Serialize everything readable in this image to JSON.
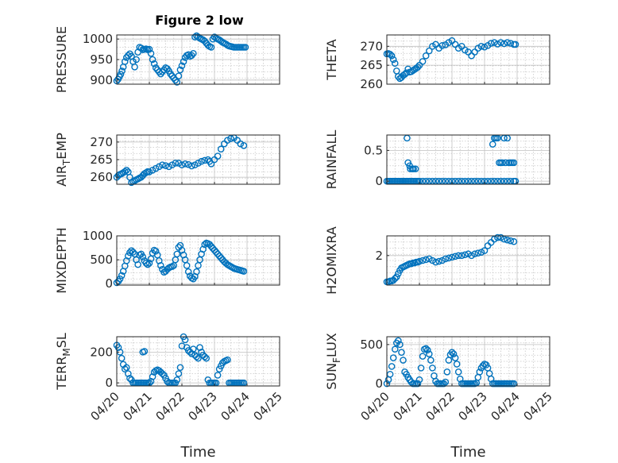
{
  "figure": {
    "title": "Figure 2 low"
  },
  "style": {
    "marker_color": "#0072BD"
  },
  "chart_data": [
    {
      "type": "scatter",
      "ylabel": "PRESSURE",
      "xlim": [
        "2023-04-20",
        "2023-04-25"
      ],
      "ylim": [
        890,
        1010
      ],
      "yticks": [
        900,
        950,
        1000
      ],
      "xticks_shown": false,
      "x_days": [
        0.0,
        0.04,
        0.08,
        0.12,
        0.16,
        0.2,
        0.25,
        0.3,
        0.35,
        0.4,
        0.45,
        0.5,
        0.55,
        0.6,
        0.65,
        0.7,
        0.75,
        0.8,
        0.85,
        0.9,
        0.95,
        1.0,
        1.05,
        1.1,
        1.15,
        1.2,
        1.25,
        1.3,
        1.35,
        1.4,
        1.45,
        1.5,
        1.55,
        1.6,
        1.65,
        1.7,
        1.75,
        1.8,
        1.85,
        1.9,
        1.95,
        2.0,
        2.05,
        2.1,
        2.15,
        2.2,
        2.25,
        2.3,
        2.35,
        2.4,
        2.45,
        2.5,
        2.55,
        2.6,
        2.65,
        2.7,
        2.75,
        2.8,
        2.85,
        2.9,
        2.95,
        3.0,
        3.05,
        3.1,
        3.15,
        3.2,
        3.25,
        3.3,
        3.35,
        3.4,
        3.45,
        3.5,
        3.55,
        3.6,
        3.65,
        3.7,
        3.75,
        3.8,
        3.85,
        3.9,
        3.95
      ],
      "y": [
        898,
        902,
        908,
        914,
        922,
        932,
        945,
        955,
        960,
        964,
        958,
        945,
        932,
        950,
        968,
        980,
        978,
        974,
        975,
        976,
        974,
        975,
        965,
        950,
        940,
        930,
        925,
        920,
        915,
        920,
        925,
        930,
        928,
        922,
        915,
        910,
        905,
        900,
        895,
        910,
        925,
        935,
        945,
        955,
        960,
        962,
        958,
        960,
        965,
        1005,
        1008,
        1005,
        1002,
        1000,
        998,
        995,
        990,
        985,
        982,
        980,
        1000,
        1005,
        1002,
        1000,
        998,
        995,
        992,
        990,
        988,
        985,
        983,
        982,
        981,
        980,
        980,
        980,
        980,
        980,
        980,
        980,
        980
      ],
      "data_note": "values estimated from the scatter"
    },
    {
      "type": "scatter",
      "ylabel": "THETA",
      "xlim": [
        "2023-04-20",
        "2023-04-25"
      ],
      "ylim": [
        260,
        273
      ],
      "yticks": [
        260,
        265,
        270
      ],
      "xticks_shown": false,
      "x_days": [
        0.0,
        0.05,
        0.1,
        0.15,
        0.2,
        0.25,
        0.3,
        0.35,
        0.4,
        0.45,
        0.5,
        0.55,
        0.6,
        0.65,
        0.7,
        0.75,
        0.8,
        0.85,
        0.9,
        0.95,
        1.0,
        1.1,
        1.2,
        1.3,
        1.4,
        1.5,
        1.6,
        1.7,
        1.8,
        1.9,
        2.0,
        2.1,
        2.2,
        2.3,
        2.4,
        2.5,
        2.6,
        2.7,
        2.8,
        2.9,
        3.0,
        3.1,
        3.2,
        3.3,
        3.4,
        3.5,
        3.6,
        3.7,
        3.8,
        3.9,
        3.95
      ],
      "y": [
        268.0,
        268.1,
        267.9,
        267.5,
        266.5,
        265.5,
        263.5,
        262.0,
        261.5,
        261.8,
        262.3,
        262.6,
        263.0,
        264.0,
        263.2,
        263.3,
        263.6,
        263.9,
        264.2,
        264.5,
        265.0,
        266.0,
        267.5,
        268.8,
        270.0,
        270.5,
        269.5,
        270.2,
        270.4,
        271.0,
        271.5,
        270.5,
        269.5,
        270.0,
        269.0,
        268.5,
        267.5,
        268.5,
        269.5,
        270.0,
        269.8,
        270.2,
        270.8,
        271.0,
        270.6,
        271.0,
        270.7,
        271.0,
        270.8,
        270.5,
        270.5
      ],
      "data_note": "values estimated from the scatter"
    },
    {
      "type": "scatter",
      "ylabel": "AIR_TEMP",
      "xlim": [
        "2023-04-20",
        "2023-04-25"
      ],
      "ylim": [
        258,
        272
      ],
      "yticks": [
        260,
        265,
        270
      ],
      "xticks_shown": false,
      "x_days": [
        0.0,
        0.05,
        0.1,
        0.15,
        0.2,
        0.25,
        0.3,
        0.35,
        0.4,
        0.45,
        0.5,
        0.55,
        0.6,
        0.65,
        0.7,
        0.75,
        0.8,
        0.85,
        0.9,
        0.95,
        1.0,
        1.1,
        1.2,
        1.3,
        1.4,
        1.5,
        1.6,
        1.7,
        1.8,
        1.9,
        2.0,
        2.1,
        2.2,
        2.3,
        2.4,
        2.5,
        2.6,
        2.7,
        2.8,
        2.85,
        2.9,
        3.0,
        3.1,
        3.2,
        3.3,
        3.4,
        3.5,
        3.6,
        3.7,
        3.8,
        3.9
      ],
      "y": [
        260.0,
        260.5,
        260.8,
        261.0,
        261.3,
        261.6,
        262.0,
        261.5,
        260.0,
        258.5,
        258.8,
        259.0,
        259.3,
        259.5,
        259.8,
        260.0,
        260.5,
        261.0,
        261.3,
        261.6,
        261.5,
        262.0,
        262.5,
        263.0,
        263.5,
        263.3,
        263.0,
        263.5,
        264.0,
        264.0,
        263.5,
        263.8,
        263.6,
        263.2,
        263.5,
        264.0,
        264.5,
        264.8,
        265.0,
        264.5,
        263.8,
        265.0,
        266.0,
        268.0,
        269.5,
        270.5,
        271.0,
        271.2,
        270.5,
        269.5,
        269.0
      ],
      "data_note": "values estimated from the scatter"
    },
    {
      "type": "scatter",
      "ylabel": "RAINFALL",
      "xlim": [
        "2023-04-20",
        "2023-04-25"
      ],
      "ylim": [
        -0.05,
        0.75
      ],
      "yticks": [
        0,
        0.5
      ],
      "xticks_shown": false,
      "x_days": [
        0.0,
        0.05,
        0.1,
        0.15,
        0.2,
        0.25,
        0.3,
        0.35,
        0.4,
        0.45,
        0.5,
        0.55,
        0.6,
        0.65,
        0.7,
        0.75,
        0.8,
        0.85,
        0.9,
        0.95,
        1.0,
        1.1,
        1.2,
        1.3,
        1.4,
        1.5,
        1.6,
        1.7,
        1.8,
        1.9,
        2.0,
        2.1,
        2.2,
        2.3,
        2.4,
        2.5,
        2.6,
        2.7,
        2.8,
        2.9,
        3.0,
        3.1,
        3.2,
        3.3,
        3.4,
        3.5,
        3.6,
        3.7,
        3.8,
        3.9,
        3.95,
        0.62,
        0.65,
        0.7,
        0.72,
        0.78,
        0.82,
        0.88,
        3.25,
        3.3,
        3.35,
        3.4,
        3.45,
        3.5,
        3.55,
        3.6,
        3.65,
        3.7,
        3.75,
        3.8,
        3.85,
        3.9
      ],
      "y": [
        0,
        0,
        0,
        0,
        0,
        0,
        0,
        0,
        0,
        0,
        0,
        0,
        0,
        0,
        0,
        0,
        0,
        0,
        0,
        0,
        0,
        0,
        0,
        0,
        0,
        0,
        0,
        0,
        0,
        0,
        0,
        0,
        0,
        0,
        0,
        0,
        0,
        0,
        0,
        0,
        0,
        0,
        0,
        0,
        0,
        0,
        0,
        0,
        0,
        0,
        0,
        0.7,
        0.3,
        0.25,
        0.2,
        0.2,
        0.2,
        0.2,
        0.6,
        0.7,
        0.7,
        0.7,
        0.3,
        0.3,
        0.3,
        0.7,
        0.3,
        0.7,
        0.3,
        0.3,
        0.3,
        0.3
      ],
      "data_note": "values estimated from the scatter"
    },
    {
      "type": "scatter",
      "ylabel": "MIXDEPTH",
      "xlim": [
        "2023-04-20",
        "2023-04-25"
      ],
      "ylim": [
        -30,
        1000
      ],
      "yticks": [
        0,
        500,
        1000
      ],
      "xticks_shown": false,
      "x_days": [
        0.0,
        0.05,
        0.1,
        0.15,
        0.2,
        0.25,
        0.3,
        0.35,
        0.4,
        0.45,
        0.5,
        0.55,
        0.6,
        0.65,
        0.7,
        0.75,
        0.8,
        0.85,
        0.9,
        0.95,
        1.0,
        1.05,
        1.1,
        1.15,
        1.2,
        1.25,
        1.3,
        1.35,
        1.4,
        1.45,
        1.5,
        1.55,
        1.6,
        1.65,
        1.7,
        1.75,
        1.8,
        1.85,
        1.9,
        1.95,
        2.0,
        2.05,
        2.1,
        2.15,
        2.2,
        2.25,
        2.3,
        2.35,
        2.4,
        2.45,
        2.5,
        2.55,
        2.6,
        2.65,
        2.7,
        2.75,
        2.8,
        2.85,
        2.9,
        2.95,
        3.0,
        3.05,
        3.1,
        3.15,
        3.2,
        3.25,
        3.3,
        3.35,
        3.4,
        3.45,
        3.5,
        3.55,
        3.6,
        3.65,
        3.7,
        3.75,
        3.8,
        3.85,
        3.9
      ],
      "y": [
        20,
        50,
        100,
        170,
        260,
        370,
        480,
        580,
        650,
        690,
        660,
        620,
        500,
        400,
        600,
        620,
        560,
        480,
        430,
        400,
        430,
        520,
        640,
        700,
        680,
        600,
        480,
        380,
        300,
        240,
        260,
        300,
        330,
        350,
        360,
        380,
        500,
        620,
        760,
        800,
        700,
        600,
        500,
        380,
        250,
        160,
        120,
        100,
        150,
        250,
        380,
        500,
        620,
        720,
        820,
        850,
        840,
        820,
        780,
        740,
        700,
        660,
        620,
        580,
        540,
        500,
        460,
        430,
        400,
        380,
        360,
        340,
        320,
        310,
        300,
        290,
        280,
        270,
        260
      ],
      "data_note": "values estimated from the scatter"
    },
    {
      "type": "scatter",
      "ylabel": "H2OMIXRA",
      "xlim": [
        "2023-04-20",
        "2023-04-25"
      ],
      "ylim": [
        0.2,
        3.2
      ],
      "yticks": [
        2
      ],
      "xticks_shown": false,
      "x_days": [
        0.0,
        0.05,
        0.1,
        0.15,
        0.2,
        0.25,
        0.3,
        0.35,
        0.4,
        0.45,
        0.5,
        0.55,
        0.6,
        0.65,
        0.7,
        0.75,
        0.8,
        0.85,
        0.9,
        0.95,
        1.0,
        1.1,
        1.2,
        1.3,
        1.4,
        1.5,
        1.6,
        1.7,
        1.8,
        1.9,
        2.0,
        2.1,
        2.2,
        2.3,
        2.4,
        2.5,
        2.6,
        2.7,
        2.8,
        2.9,
        3.0,
        3.1,
        3.2,
        3.3,
        3.4,
        3.5,
        3.6,
        3.7,
        3.8,
        3.9
      ],
      "y": [
        0.4,
        0.4,
        0.45,
        0.45,
        0.5,
        0.6,
        0.7,
        0.9,
        1.1,
        1.25,
        1.3,
        1.35,
        1.4,
        1.45,
        1.5,
        1.5,
        1.55,
        1.55,
        1.6,
        1.6,
        1.65,
        1.7,
        1.75,
        1.8,
        1.7,
        1.6,
        1.65,
        1.7,
        1.8,
        1.85,
        1.9,
        1.95,
        2.0,
        2.0,
        2.05,
        2.1,
        2.0,
        2.1,
        2.15,
        2.2,
        2.3,
        2.6,
        2.8,
        3.0,
        3.1,
        3.1,
        3.0,
        2.95,
        2.9,
        2.85
      ],
      "data_note": "values estimated from the scatter"
    },
    {
      "type": "scatter",
      "ylabel": "TERR_MSL",
      "xlim": [
        "2023-04-20",
        "2023-04-25"
      ],
      "ylim": [
        -20,
        300
      ],
      "yticks": [
        0,
        200
      ],
      "xticks": [
        "04/20",
        "04/21",
        "04/22",
        "04/23",
        "04/24",
        "04/25"
      ],
      "xlabel": "Time",
      "x_days": [
        0.0,
        0.05,
        0.1,
        0.15,
        0.2,
        0.25,
        0.3,
        0.35,
        0.4,
        0.45,
        0.5,
        0.55,
        0.6,
        0.65,
        0.7,
        0.75,
        0.8,
        0.85,
        0.9,
        0.95,
        1.0,
        1.05,
        1.1,
        1.15,
        1.2,
        1.25,
        1.3,
        1.35,
        1.4,
        1.45,
        1.5,
        1.55,
        1.6,
        1.65,
        1.7,
        1.75,
        1.8,
        1.85,
        1.9,
        1.95,
        2.0,
        2.05,
        2.1,
        2.15,
        2.2,
        2.25,
        2.3,
        2.35,
        2.4,
        2.45,
        2.5,
        2.55,
        2.6,
        2.65,
        2.7,
        2.75,
        2.8,
        2.85,
        2.9,
        2.95,
        3.0,
        3.05,
        3.1,
        3.15,
        3.2,
        3.25,
        3.3,
        3.35,
        3.4,
        3.45,
        3.5,
        3.55,
        3.6,
        3.65,
        3.7,
        3.75,
        3.8,
        3.85,
        3.9,
        0.8,
        0.85
      ],
      "y": [
        245,
        230,
        200,
        160,
        120,
        90,
        100,
        60,
        30,
        20,
        0,
        0,
        0,
        0,
        0,
        0,
        0,
        0,
        0,
        0,
        0,
        10,
        40,
        70,
        80,
        85,
        80,
        70,
        60,
        50,
        30,
        10,
        0,
        0,
        0,
        0,
        0,
        20,
        60,
        100,
        240,
        300,
        280,
        230,
        210,
        200,
        190,
        220,
        180,
        170,
        160,
        230,
        200,
        180,
        170,
        160,
        20,
        0,
        0,
        0,
        0,
        0,
        50,
        90,
        110,
        130,
        140,
        145,
        150,
        0,
        0,
        0,
        0,
        0,
        0,
        0,
        0,
        0,
        0,
        200,
        205
      ],
      "data_note": "values estimated from the scatter"
    },
    {
      "type": "scatter",
      "ylabel": "SUN_FLUX",
      "xlim": [
        "2023-04-20",
        "2023-04-25"
      ],
      "ylim": [
        -30,
        600
      ],
      "yticks": [
        0,
        500
      ],
      "xticks": [
        "04/20",
        "04/21",
        "04/22",
        "04/23",
        "04/24",
        "04/25"
      ],
      "xlabel": "Time",
      "x_days": [
        0.0,
        0.05,
        0.1,
        0.15,
        0.2,
        0.25,
        0.3,
        0.35,
        0.4,
        0.45,
        0.5,
        0.55,
        0.6,
        0.65,
        0.7,
        0.75,
        0.8,
        0.85,
        0.9,
        0.95,
        1.0,
        1.05,
        1.1,
        1.15,
        1.2,
        1.25,
        1.3,
        1.35,
        1.4,
        1.45,
        1.5,
        1.55,
        1.6,
        1.65,
        1.7,
        1.75,
        1.8,
        1.85,
        1.9,
        1.95,
        2.0,
        2.05,
        2.1,
        2.15,
        2.2,
        2.25,
        2.3,
        2.35,
        2.4,
        2.45,
        2.5,
        2.55,
        2.6,
        2.65,
        2.7,
        2.75,
        2.8,
        2.85,
        2.9,
        2.95,
        3.0,
        3.05,
        3.1,
        3.15,
        3.2,
        3.25,
        3.3,
        3.35,
        3.4,
        3.45,
        3.5,
        3.55,
        3.6,
        3.65,
        3.7,
        3.75,
        3.8,
        3.85,
        3.9
      ],
      "y": [
        0,
        50,
        120,
        220,
        330,
        440,
        520,
        550,
        500,
        400,
        300,
        150,
        120,
        80,
        50,
        20,
        0,
        0,
        0,
        0,
        50,
        200,
        350,
        440,
        450,
        430,
        380,
        300,
        200,
        100,
        30,
        0,
        0,
        0,
        0,
        0,
        20,
        150,
        300,
        370,
        400,
        380,
        330,
        250,
        150,
        60,
        0,
        0,
        0,
        0,
        0,
        0,
        0,
        0,
        0,
        10,
        80,
        150,
        200,
        230,
        250,
        240,
        200,
        130,
        60,
        0,
        0,
        0,
        0,
        0,
        0,
        0,
        0,
        0,
        0,
        0,
        0,
        0,
        0
      ],
      "data_note": "values estimated from the scatter"
    }
  ]
}
